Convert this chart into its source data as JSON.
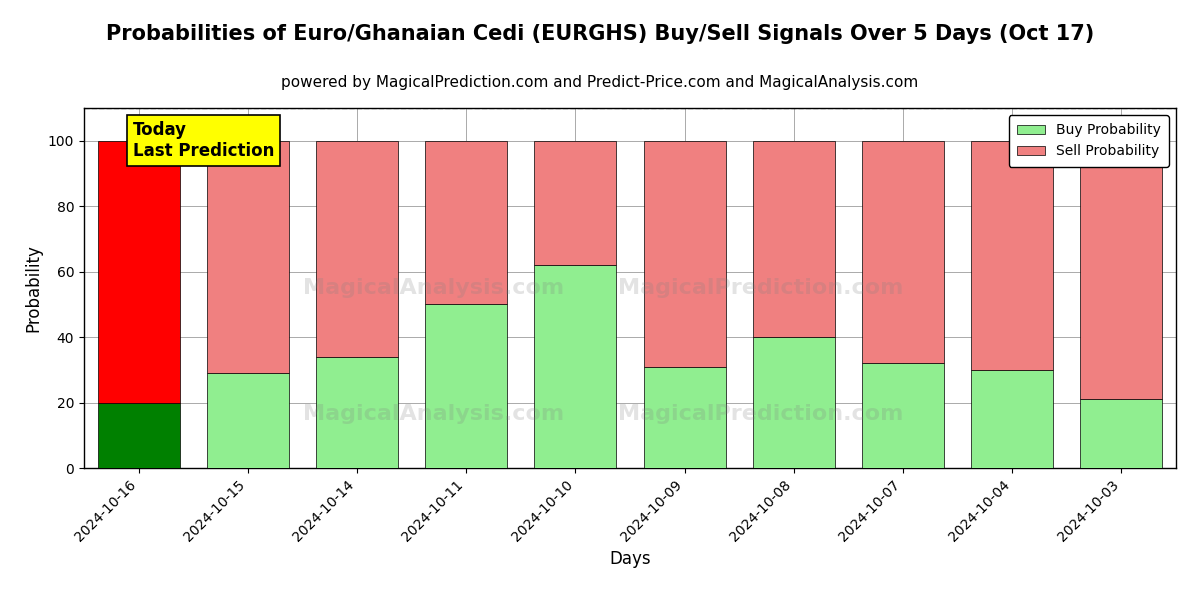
{
  "title": "Probabilities of Euro/Ghanaian Cedi (EURGHS) Buy/Sell Signals Over 5 Days (Oct 17)",
  "subtitle": "powered by MagicalPrediction.com and Predict-Price.com and MagicalAnalysis.com",
  "xlabel": "Days",
  "ylabel": "Probability",
  "categories": [
    "2024-10-16",
    "2024-10-15",
    "2024-10-14",
    "2024-10-11",
    "2024-10-10",
    "2024-10-09",
    "2024-10-08",
    "2024-10-07",
    "2024-10-04",
    "2024-10-03"
  ],
  "buy_values": [
    20,
    29,
    34,
    50,
    62,
    31,
    40,
    32,
    30,
    21
  ],
  "sell_values": [
    80,
    71,
    66,
    50,
    38,
    69,
    60,
    68,
    70,
    79
  ],
  "today_bar_buy_color": "#008000",
  "today_bar_sell_color": "#ff0000",
  "other_bar_buy_color": "#90EE90",
  "other_bar_sell_color": "#F08080",
  "today_label": "Today\nLast Prediction",
  "today_label_bg": "#ffff00",
  "legend_buy_label": "Buy Probability",
  "legend_sell_label": "Sell Probability",
  "ylim": [
    0,
    110
  ],
  "dashed_line_y": 110,
  "title_fontsize": 15,
  "subtitle_fontsize": 11,
  "background_color": "#ffffff",
  "grid_color": "#aaaaaa",
  "bar_width": 0.75
}
